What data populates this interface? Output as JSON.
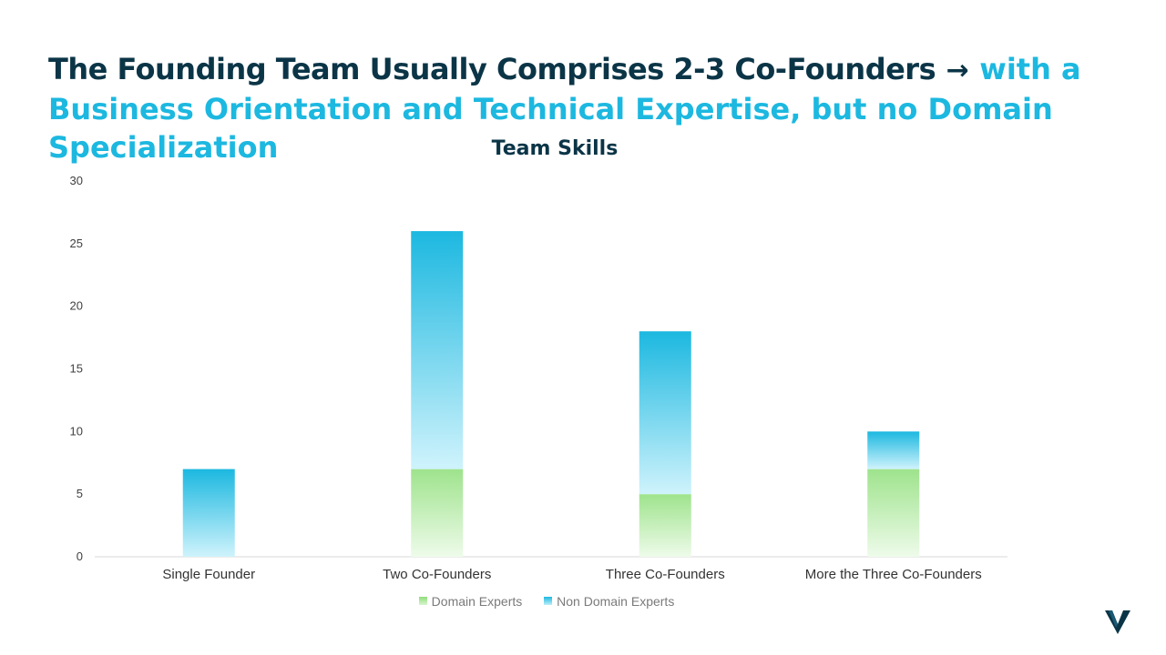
{
  "headline": {
    "bold": "The Founding Team Usually Comprises 2-3 Co-Founders",
    "arrow": "→",
    "light": "with a Business Orientation and Technical Expertise, but no Domain Specialization"
  },
  "chart_data": {
    "type": "bar",
    "stacked": true,
    "title": "Team Skills",
    "categories": [
      "Single Founder",
      "Two Co-Founders",
      "Three Co-Founders",
      "More the Three Co-Founders"
    ],
    "series": [
      {
        "name": "Domain Experts",
        "values": [
          0,
          7,
          5,
          7
        ],
        "color": "#8fde7a"
      },
      {
        "name": "Non Domain Experts",
        "values": [
          7,
          19,
          13,
          3
        ],
        "color": "#1cb8e0"
      }
    ],
    "ylim": [
      0,
      30
    ],
    "yticks": [
      0,
      5,
      10,
      15,
      20,
      25,
      30
    ],
    "legend_position": "bottom",
    "grid": false
  },
  "colors": {
    "dark": "#0b3547",
    "accent": "#1cb8e0",
    "green": "#8fde7a"
  },
  "logo": {
    "icon": "v-logo-icon"
  }
}
